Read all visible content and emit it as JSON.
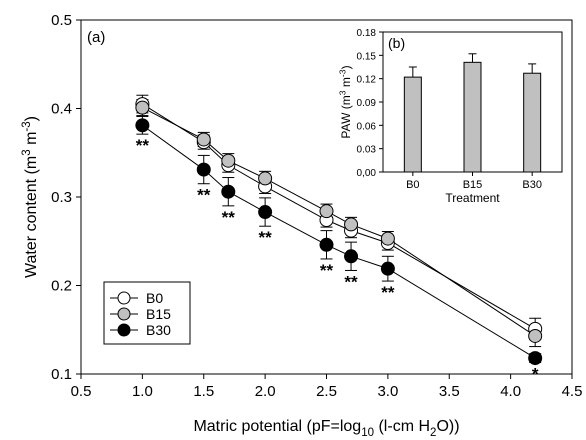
{
  "chart_data": [
    {
      "type": "line",
      "panel_label": "(a)",
      "xlabel": "Matric potential (pF=log10 (l-cm H2O))",
      "ylabel": "Water content (m3 m-3)",
      "xlim": [
        0.5,
        4.5
      ],
      "ylim": [
        0.1,
        0.5
      ],
      "xticks": [
        0.5,
        1.0,
        1.5,
        2.0,
        2.5,
        3.0,
        3.5,
        4.0,
        4.5
      ],
      "xtick_labels": [
        "0.5",
        "1.0",
        "1.5",
        "2.0",
        "2.5",
        "3.0",
        "3.5",
        "4.0",
        "4.5"
      ],
      "yticks": [
        0.1,
        0.2,
        0.3,
        0.4,
        0.5
      ],
      "ytick_labels": [
        "0.1",
        "0.2",
        "0.3",
        "0.4",
        "0.5"
      ],
      "legend_position": "bottom-left",
      "x": [
        1.0,
        1.5,
        1.7,
        2.0,
        2.5,
        2.7,
        3.0,
        4.2
      ],
      "series": [
        {
          "name": "B0",
          "marker": "open",
          "color": "#ffffff",
          "values": [
            0.405,
            0.362,
            0.336,
            0.312,
            0.274,
            0.262,
            0.248,
            0.151
          ],
          "errors": [
            0.01,
            0.008,
            0.008,
            0.008,
            0.008,
            0.008,
            0.008,
            0.012
          ]
        },
        {
          "name": "B15",
          "marker": "gray",
          "color": "#c0c0c0",
          "values": [
            0.401,
            0.365,
            0.341,
            0.321,
            0.284,
            0.269,
            0.253,
            0.143
          ],
          "errors": [
            0.009,
            0.008,
            0.008,
            0.008,
            0.008,
            0.008,
            0.008,
            0.012
          ]
        },
        {
          "name": "B30",
          "marker": "black",
          "color": "#000000",
          "values": [
            0.381,
            0.331,
            0.306,
            0.283,
            0.246,
            0.233,
            0.219,
            0.118
          ],
          "errors": [
            0.01,
            0.016,
            0.016,
            0.016,
            0.016,
            0.016,
            0.014,
            0.005
          ]
        }
      ],
      "significance": [
        {
          "x": 1.0,
          "label": "**"
        },
        {
          "x": 1.5,
          "label": "**"
        },
        {
          "x": 1.7,
          "label": "**"
        },
        {
          "x": 2.0,
          "label": "**"
        },
        {
          "x": 2.5,
          "label": "**"
        },
        {
          "x": 2.7,
          "label": "**"
        },
        {
          "x": 3.0,
          "label": "**"
        },
        {
          "x": 4.2,
          "label": "*"
        }
      ]
    },
    {
      "type": "bar",
      "panel_label": "(b)",
      "xlabel": "Treatment",
      "ylabel": "PAW (m3 m-3)",
      "categories": [
        "B0",
        "B15",
        "B30"
      ],
      "values": [
        0.122,
        0.141,
        0.127
      ],
      "errors": [
        0.013,
        0.011,
        0.012
      ],
      "bar_color": "#c0c0c0",
      "ylim": [
        0,
        0.18
      ],
      "yticks": [
        0,
        0.03,
        0.06,
        0.09,
        0.12,
        0.15,
        0.18
      ],
      "ytick_labels": [
        "0,00",
        "0.03",
        "0.06",
        "0.09",
        "0.12",
        "0.15",
        "0.18"
      ]
    }
  ]
}
